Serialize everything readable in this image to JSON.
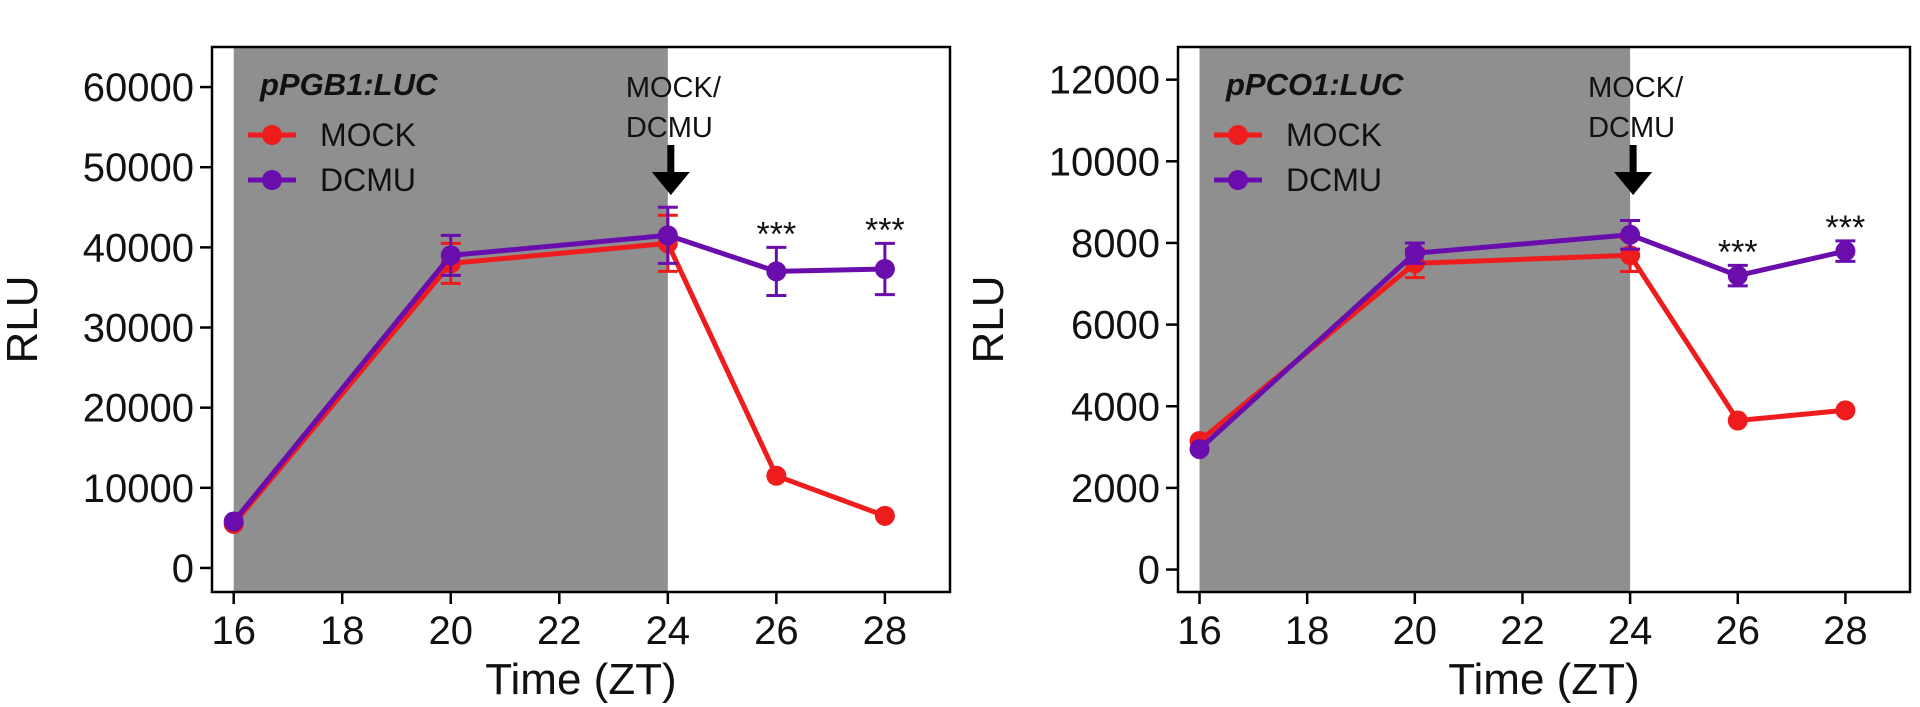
{
  "chart_data": [
    {
      "type": "line",
      "title": "pPGB1:LUC",
      "xlabel": "Time (ZT)",
      "ylabel": "RLU",
      "xlim": [
        15.6,
        29.2
      ],
      "ylim": [
        -3000,
        65000
      ],
      "xticks": [
        16,
        18,
        20,
        22,
        24,
        26,
        28
      ],
      "xtick_labels": [
        "16",
        "18",
        "20",
        "22",
        "24",
        "26",
        "28"
      ],
      "yticks": [
        0,
        10000,
        20000,
        30000,
        40000,
        50000,
        60000
      ],
      "ytick_labels": [
        "0",
        "10000",
        "20000",
        "30000",
        "40000",
        "50000",
        "60000"
      ],
      "dark_period": [
        16,
        24
      ],
      "grid": false,
      "legend_position": "top-left",
      "annotation": {
        "text_lines": [
          "MOCK/",
          "DCMU"
        ],
        "x": 24
      },
      "significance": [
        {
          "x": 26,
          "label": "***"
        },
        {
          "x": 28,
          "label": "***"
        }
      ],
      "series": [
        {
          "name": "MOCK",
          "color": "#ee1c1c",
          "x": [
            16,
            20,
            24,
            26,
            28
          ],
          "values": [
            5500,
            38000,
            40500,
            11500,
            6500
          ],
          "errors": [
            0,
            2500,
            3500,
            0,
            0
          ]
        },
        {
          "name": "DCMU",
          "color": "#6a0dad",
          "x": [
            16,
            20,
            24,
            26,
            28
          ],
          "values": [
            5800,
            39000,
            41500,
            37000,
            37300
          ],
          "errors": [
            0,
            2500,
            3500,
            3000,
            3200
          ]
        }
      ]
    },
    {
      "type": "line",
      "title": "pPCO1:LUC",
      "xlabel": "Time (ZT)",
      "ylabel": "RLU",
      "xlim": [
        15.6,
        29.2
      ],
      "ylim": [
        -550,
        12800
      ],
      "xticks": [
        16,
        18,
        20,
        22,
        24,
        26,
        28
      ],
      "xtick_labels": [
        "16",
        "18",
        "20",
        "22",
        "24",
        "26",
        "28"
      ],
      "yticks": [
        0,
        2000,
        4000,
        6000,
        8000,
        10000,
        12000
      ],
      "ytick_labels": [
        "0",
        "2000",
        "4000",
        "6000",
        "8000",
        "10000",
        "12000"
      ],
      "dark_period": [
        16,
        24
      ],
      "grid": false,
      "legend_position": "top-left",
      "annotation": {
        "text_lines": [
          "MOCK/",
          "DCMU"
        ],
        "x": 24
      },
      "significance": [
        {
          "x": 26,
          "label": "***"
        },
        {
          "x": 28,
          "label": "***"
        }
      ],
      "series": [
        {
          "name": "MOCK",
          "color": "#ee1c1c",
          "x": [
            16,
            20,
            24,
            26,
            28
          ],
          "values": [
            3150,
            7500,
            7700,
            3650,
            3900
          ],
          "errors": [
            0,
            350,
            400,
            0,
            0
          ]
        },
        {
          "name": "DCMU",
          "color": "#6a0dad",
          "x": [
            16,
            20,
            24,
            26,
            28
          ],
          "values": [
            2950,
            7750,
            8200,
            7200,
            7800
          ],
          "errors": [
            0,
            250,
            350,
            250,
            250
          ]
        }
      ]
    }
  ]
}
